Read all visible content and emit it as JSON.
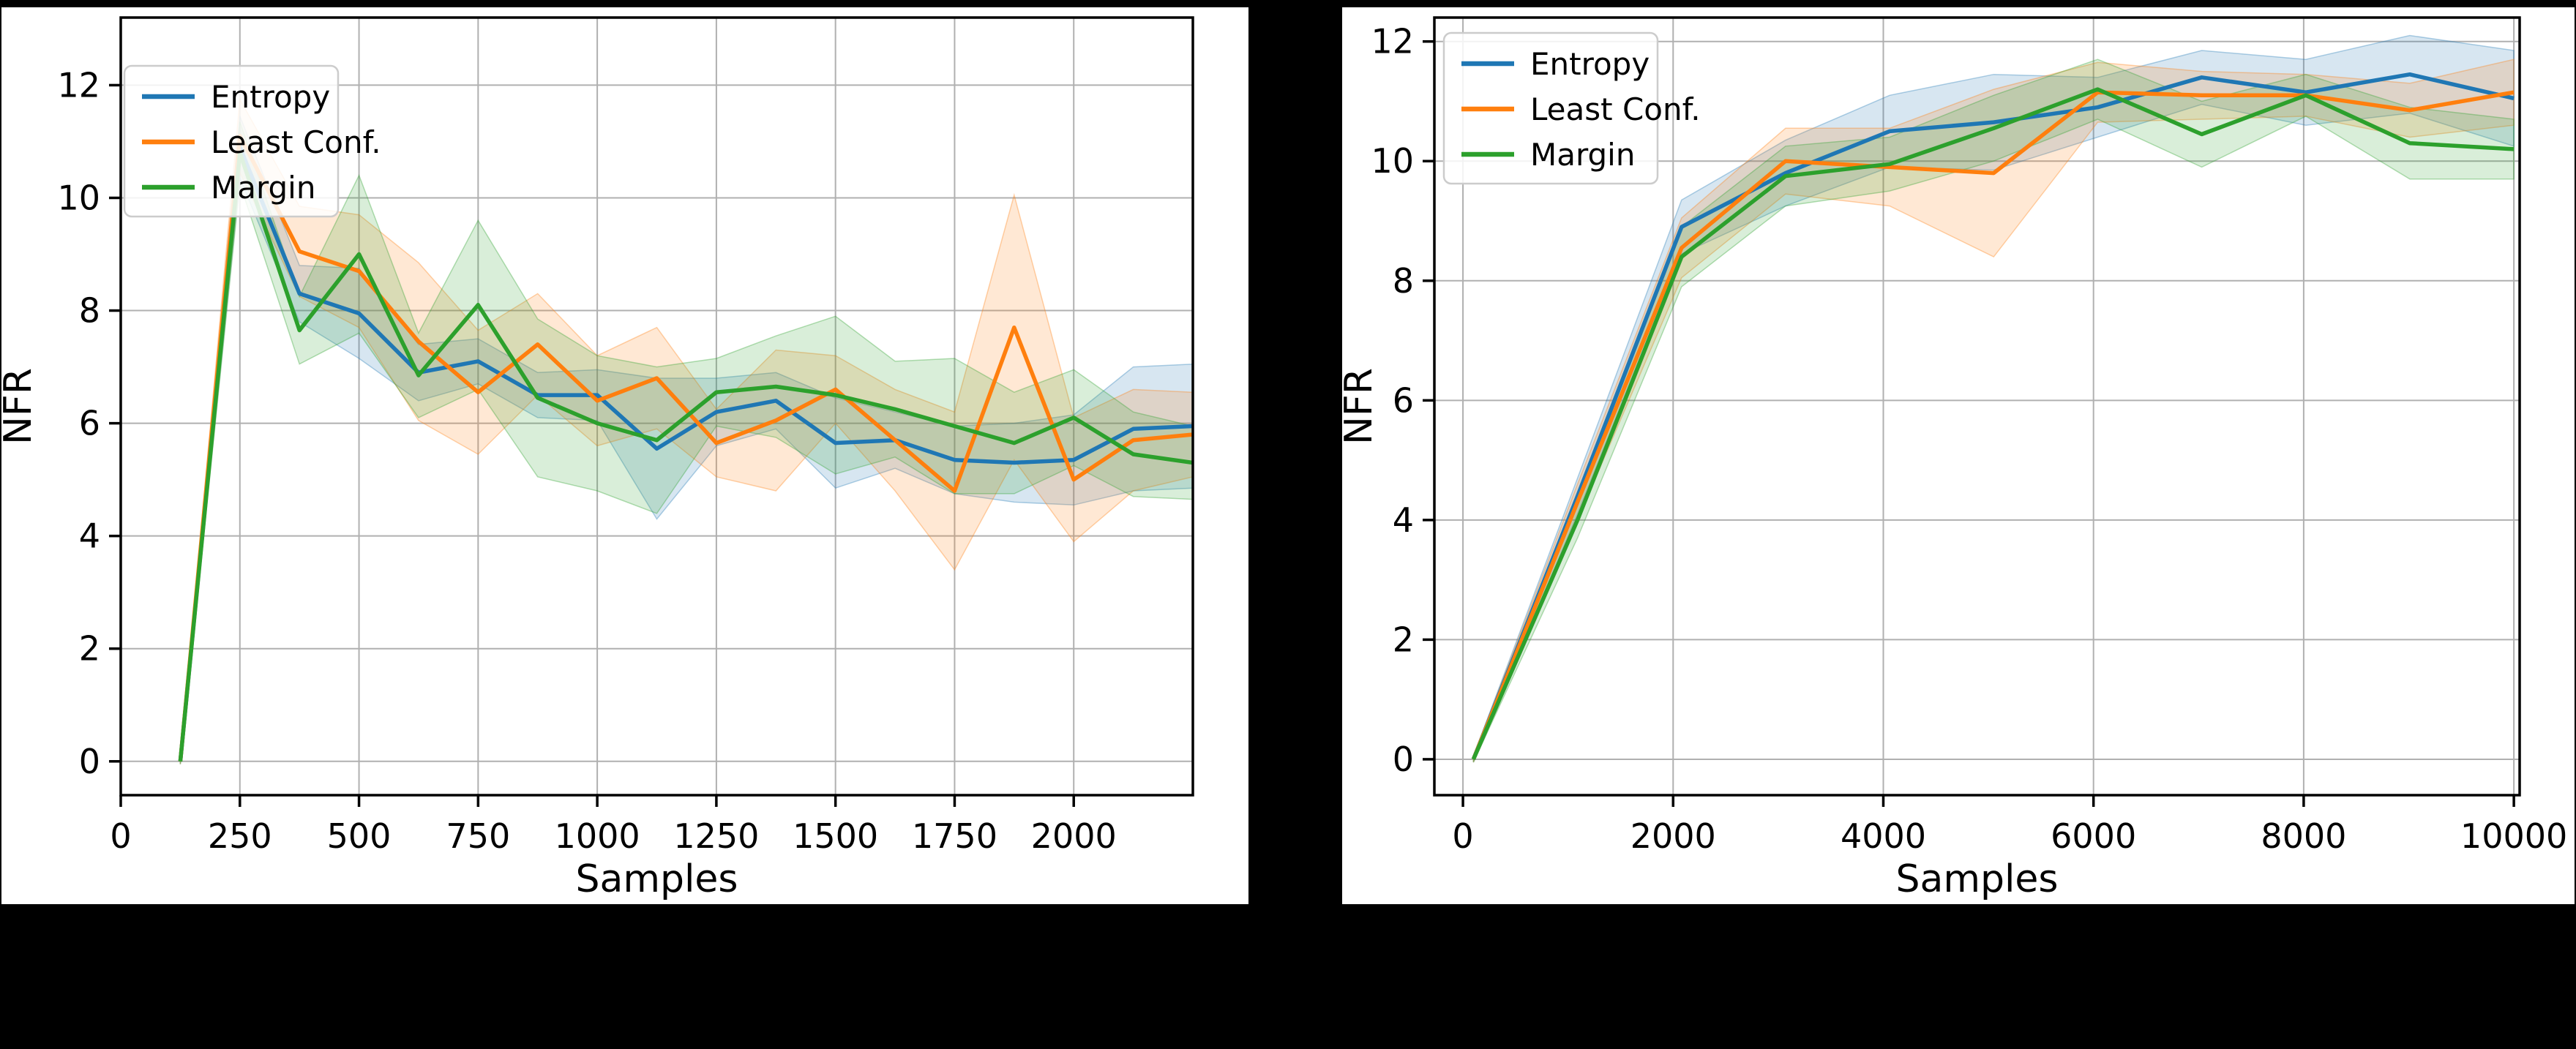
{
  "figure": {
    "background_color": "#000000",
    "panel_background_color": "#ffffff",
    "grid_color": "#b0b0b0",
    "spine_color": "#000000",
    "legend_border_color": "#cccccc",
    "band_opacity": 0.18
  },
  "chart_data": [
    {
      "id": "left",
      "type": "line",
      "title": "",
      "xlabel": "Samples",
      "ylabel": "NFR",
      "xlim": [
        0,
        2250
      ],
      "ylim": [
        -0.6,
        13.2
      ],
      "grid": true,
      "legend_position": "upper-left",
      "x_ticks": [
        0,
        250,
        500,
        750,
        1000,
        1250,
        1500,
        1750,
        2000
      ],
      "y_ticks": [
        0,
        2,
        4,
        6,
        8,
        10,
        12
      ],
      "series": [
        {
          "name": "Entropy",
          "color": "#1f77b4",
          "x": [
            125,
            250,
            375,
            500,
            625,
            750,
            875,
            1000,
            1125,
            1250,
            1375,
            1500,
            1625,
            1750,
            1875,
            2000,
            2125,
            2250
          ],
          "y": [
            0,
            10.9,
            8.3,
            7.95,
            6.9,
            7.1,
            6.5,
            6.5,
            5.55,
            6.2,
            6.4,
            5.65,
            5.7,
            5.35,
            5.3,
            5.35,
            5.9,
            5.95
          ],
          "band": [
            0.05,
            0.55,
            0.5,
            0.8,
            0.5,
            0.4,
            0.4,
            0.45,
            1.25,
            0.6,
            0.5,
            0.8,
            0.5,
            0.6,
            0.7,
            0.8,
            1.1,
            1.1
          ]
        },
        {
          "name": "Least Conf.",
          "color": "#ff7f0e",
          "x": [
            125,
            250,
            375,
            500,
            625,
            750,
            875,
            1000,
            1125,
            1250,
            1375,
            1500,
            1625,
            1750,
            1875,
            2000,
            2125,
            2250
          ],
          "y": [
            0,
            11.1,
            9.05,
            8.7,
            7.45,
            6.55,
            7.4,
            6.4,
            6.8,
            5.65,
            6.05,
            6.6,
            5.7,
            4.8,
            7.7,
            5.0,
            5.7,
            5.8
          ],
          "band": [
            0.05,
            0.65,
            0.8,
            1.0,
            1.4,
            1.1,
            0.9,
            0.8,
            0.9,
            0.6,
            1.25,
            0.6,
            0.9,
            1.4,
            2.35,
            1.1,
            0.9,
            0.75
          ]
        },
        {
          "name": "Margin",
          "color": "#2ca02c",
          "x": [
            125,
            250,
            375,
            500,
            625,
            750,
            875,
            1000,
            1125,
            1250,
            1375,
            1500,
            1625,
            1750,
            1875,
            2000,
            2125,
            2250
          ],
          "y": [
            0,
            10.8,
            7.65,
            9.0,
            6.85,
            8.1,
            6.45,
            6.0,
            5.7,
            6.55,
            6.65,
            6.5,
            6.25,
            5.95,
            5.65,
            6.1,
            5.45,
            5.3
          ],
          "band": [
            0.05,
            0.55,
            0.6,
            1.4,
            0.75,
            1.5,
            1.4,
            1.2,
            1.3,
            0.6,
            0.9,
            1.4,
            0.85,
            1.2,
            0.9,
            0.85,
            0.75,
            0.65
          ]
        }
      ]
    },
    {
      "id": "right",
      "type": "line",
      "title": "",
      "xlabel": "Samples",
      "ylabel": "NFR",
      "xlim": [
        -272,
        10055
      ],
      "ylim": [
        -0.6,
        12.4
      ],
      "grid": true,
      "legend_position": "upper-left",
      "x_ticks": [
        0,
        2000,
        4000,
        6000,
        8000,
        10000
      ],
      "y_ticks": [
        0,
        2,
        4,
        6,
        8,
        10,
        12
      ],
      "series": [
        {
          "name": "Entropy",
          "color": "#1f77b4",
          "x": [
            100,
            1090,
            2080,
            3070,
            4060,
            5050,
            6040,
            7030,
            8020,
            9010,
            10000
          ],
          "y": [
            0,
            4.4,
            8.9,
            9.8,
            10.5,
            10.65,
            10.9,
            11.4,
            11.15,
            11.45,
            11.05
          ],
          "band": [
            0.05,
            0.3,
            0.45,
            0.55,
            0.6,
            0.8,
            0.5,
            0.45,
            0.55,
            0.65,
            0.8
          ]
        },
        {
          "name": "Least Conf.",
          "color": "#ff7f0e",
          "x": [
            100,
            1090,
            2080,
            3070,
            4060,
            5050,
            6040,
            7030,
            8020,
            9010,
            10000
          ],
          "y": [
            0,
            4.3,
            8.55,
            10.0,
            9.9,
            9.8,
            11.15,
            11.1,
            11.1,
            10.85,
            11.15
          ],
          "band": [
            0.05,
            0.3,
            0.5,
            0.55,
            0.65,
            1.4,
            0.5,
            0.4,
            0.35,
            0.45,
            0.55
          ]
        },
        {
          "name": "Margin",
          "color": "#2ca02c",
          "x": [
            100,
            1090,
            2080,
            3070,
            4060,
            5050,
            6040,
            7030,
            8020,
            9010,
            10000
          ],
          "y": [
            0,
            4.0,
            8.4,
            9.75,
            9.95,
            10.55,
            11.2,
            10.45,
            11.1,
            10.3,
            10.2
          ],
          "band": [
            0.05,
            0.3,
            0.5,
            0.5,
            0.45,
            0.55,
            0.5,
            0.55,
            0.35,
            0.6,
            0.5
          ]
        }
      ]
    }
  ]
}
